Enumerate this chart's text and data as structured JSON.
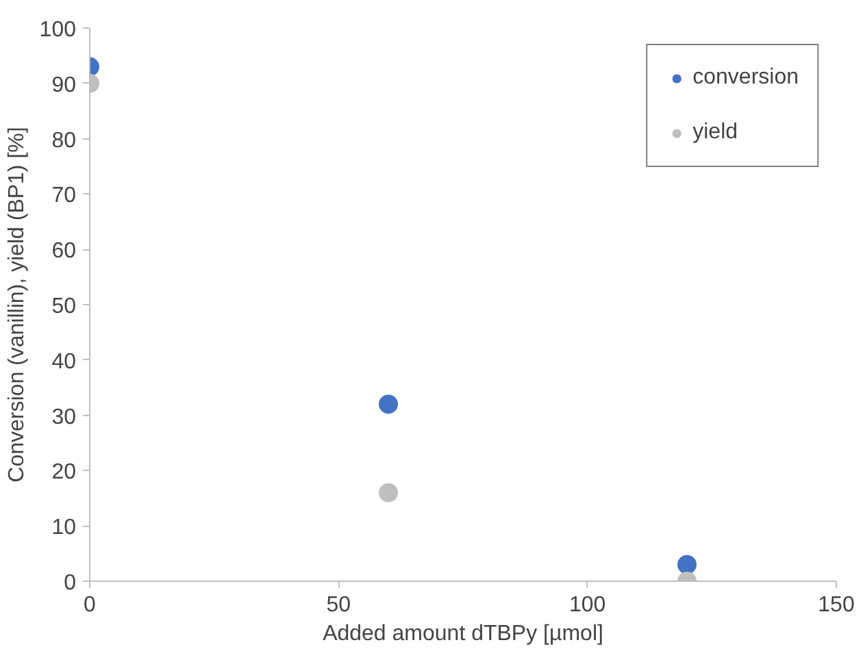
{
  "chart_data": {
    "type": "scatter",
    "xlabel": "Added amount dTBPy [µmol]",
    "ylabel": "Conversion (vanillin), yield (BP1) [%]",
    "x": [
      0,
      60,
      120
    ],
    "series": [
      {
        "name": "conversion",
        "color": "#4472c4",
        "values": [
          93,
          32,
          3
        ]
      },
      {
        "name": "yield",
        "color": "#bfbfbf",
        "values": [
          90,
          16,
          0
        ]
      }
    ],
    "xlim": [
      0,
      150
    ],
    "xticks": [
      0,
      50,
      100,
      150
    ],
    "ylim": [
      0,
      100
    ],
    "yticks": [
      0,
      10,
      20,
      30,
      40,
      50,
      60,
      70,
      80,
      90,
      100
    ],
    "grid": false,
    "legend": "top right",
    "marker": "circle"
  }
}
